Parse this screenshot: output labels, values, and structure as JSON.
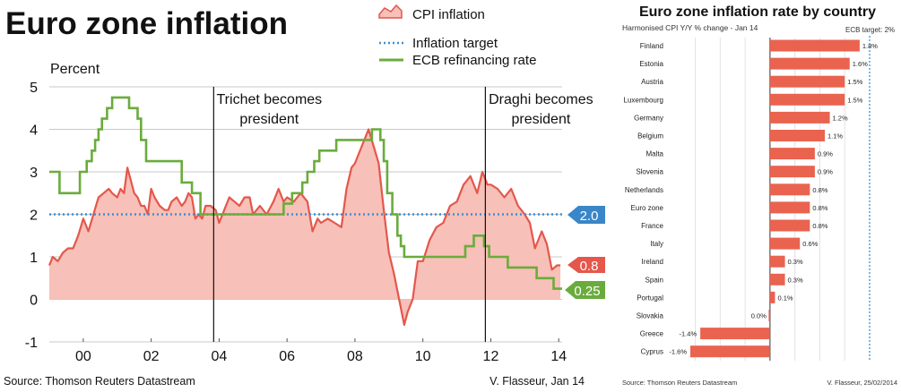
{
  "chart_data": [
    {
      "type": "area",
      "title": "Euro zone inflation",
      "ylabel": "Percent",
      "ylim": [
        -1,
        5
      ],
      "xlim": [
        1999.0,
        2014.1
      ],
      "yticks": [
        "5",
        "4",
        "3",
        "2",
        "1",
        "0",
        "-1"
      ],
      "xticks": [
        {
          "x": 2000,
          "label": "00"
        },
        {
          "x": 2002,
          "label": "02"
        },
        {
          "x": 2004,
          "label": "04"
        },
        {
          "x": 2006,
          "label": "06"
        },
        {
          "x": 2008,
          "label": "08"
        },
        {
          "x": 2010,
          "label": "10"
        },
        {
          "x": 2012,
          "label": "12"
        },
        {
          "x": 2014,
          "label": "14"
        }
      ],
      "grid": "horizontal",
      "legend": [
        "CPI inflation",
        "Inflation target",
        "ECB refinancing rate"
      ],
      "events": [
        {
          "x": 2003.84,
          "label_lines": [
            "Trichet becomes",
            "president"
          ]
        },
        {
          "x": 2011.84,
          "label_lines": [
            "Draghi becomes",
            "president"
          ]
        }
      ],
      "end_labels": {
        "target": "2.0",
        "cpi": "0.8",
        "rate": "0.25"
      },
      "colors": {
        "cpi_line": "#e4574c",
        "cpi_fill": "#f7c0b8",
        "target": "#3d8fd6",
        "rate": "#6aac3c",
        "target_badge": "#3a86c8",
        "cpi_badge": "#e4574c",
        "rate_badge": "#6aac3c"
      },
      "series": [
        {
          "name": "CPI inflation",
          "x": [
            1999.0,
            1999.1,
            1999.25,
            1999.4,
            1999.55,
            1999.7,
            1999.85,
            2000.0,
            2000.15,
            2000.3,
            2000.45,
            2000.6,
            2000.75,
            2000.85,
            2001.0,
            2001.1,
            2001.2,
            2001.3,
            2001.4,
            2001.5,
            2001.6,
            2001.7,
            2001.8,
            2001.9,
            2002.0,
            2002.1,
            2002.25,
            2002.4,
            2002.5,
            2002.6,
            2002.75,
            2002.9,
            2003.0,
            2003.1,
            2003.2,
            2003.3,
            2003.4,
            2003.5,
            2003.6,
            2003.75,
            2003.9,
            2004.0,
            2004.15,
            2004.3,
            2004.45,
            2004.6,
            2004.75,
            2004.9,
            2005.0,
            2005.2,
            2005.4,
            2005.6,
            2005.75,
            2005.9,
            2006.0,
            2006.2,
            2006.4,
            2006.6,
            2006.75,
            2006.9,
            2007.0,
            2007.2,
            2007.4,
            2007.6,
            2007.75,
            2007.9,
            2008.0,
            2008.2,
            2008.4,
            2008.55,
            2008.7,
            2008.85,
            2009.0,
            2009.15,
            2009.3,
            2009.45,
            2009.55,
            2009.7,
            2009.85,
            2010.0,
            2010.2,
            2010.4,
            2010.6,
            2010.8,
            2011.0,
            2011.2,
            2011.4,
            2011.6,
            2011.75,
            2011.9,
            2012.0,
            2012.2,
            2012.4,
            2012.6,
            2012.8,
            2013.0,
            2013.15,
            2013.3,
            2013.5,
            2013.65,
            2013.8,
            2013.95,
            2014.05
          ],
          "values": [
            0.8,
            1.0,
            0.9,
            1.1,
            1.2,
            1.2,
            1.5,
            1.9,
            1.6,
            2.0,
            2.4,
            2.5,
            2.6,
            2.5,
            2.4,
            2.6,
            2.5,
            3.1,
            2.8,
            2.5,
            2.4,
            2.2,
            2.2,
            2.0,
            2.6,
            2.4,
            2.2,
            2.1,
            2.1,
            2.3,
            2.4,
            2.2,
            2.3,
            2.5,
            2.4,
            1.9,
            2.0,
            1.9,
            2.2,
            2.2,
            2.1,
            1.8,
            2.1,
            2.4,
            2.3,
            2.2,
            2.4,
            2.4,
            2.0,
            2.2,
            2.0,
            2.3,
            2.6,
            2.3,
            2.4,
            2.3,
            2.5,
            2.3,
            1.6,
            1.9,
            1.8,
            1.9,
            1.8,
            1.7,
            2.6,
            3.1,
            3.2,
            3.6,
            4.0,
            3.6,
            3.2,
            2.1,
            1.1,
            0.6,
            0.0,
            -0.6,
            -0.3,
            0.0,
            0.9,
            0.9,
            1.4,
            1.7,
            1.8,
            2.2,
            2.3,
            2.7,
            2.9,
            2.5,
            3.0,
            2.7,
            2.7,
            2.6,
            2.4,
            2.6,
            2.2,
            2.0,
            1.8,
            1.2,
            1.6,
            1.3,
            0.7,
            0.8,
            0.8
          ]
        },
        {
          "name": "Inflation target",
          "x": [
            1999.0,
            2014.1
          ],
          "values": [
            2.0,
            2.0
          ]
        },
        {
          "name": "ECB refinancing rate",
          "x": [
            1999.0,
            1999.3,
            1999.9,
            2000.1,
            2000.25,
            2000.35,
            2000.45,
            2000.55,
            2000.7,
            2000.85,
            2001.35,
            2001.6,
            2001.7,
            2001.85,
            2002.9,
            2003.2,
            2003.45,
            2005.9,
            2006.15,
            2006.45,
            2006.6,
            2006.8,
            2006.95,
            2007.45,
            2008.5,
            2008.75,
            2008.85,
            2008.95,
            2009.1,
            2009.25,
            2009.35,
            2009.45,
            2011.25,
            2011.5,
            2011.8,
            2011.95,
            2012.5,
            2013.35,
            2013.85,
            2014.1
          ],
          "values": [
            3.0,
            2.5,
            3.0,
            3.25,
            3.5,
            3.75,
            4.0,
            4.25,
            4.5,
            4.75,
            4.5,
            4.25,
            3.75,
            3.25,
            2.75,
            2.5,
            2.0,
            2.25,
            2.5,
            2.75,
            3.0,
            3.25,
            3.5,
            3.75,
            4.0,
            3.75,
            3.25,
            2.5,
            2.0,
            1.5,
            1.25,
            1.0,
            1.25,
            1.5,
            1.25,
            1.0,
            0.75,
            0.5,
            0.25,
            0.25
          ]
        }
      ],
      "source": "Source: Thomson Reuters Datastream",
      "credit": "V. Flasseur, Jan 14"
    },
    {
      "type": "bar",
      "title": "Euro zone inflation rate by country",
      "subtitle": "Harmonised CPI Y/Y % change - Jan 14",
      "reference": {
        "value": 2.0,
        "label": "ECB target: 2%"
      },
      "xlim": [
        -1.6,
        2.0
      ],
      "categories": [
        "Finland",
        "Estonia",
        "Austria",
        "Luxembourg",
        "Germany",
        "Belgium",
        "Malta",
        "Slovenia",
        "Netherlands",
        "Euro zone",
        "France",
        "Italy",
        "Ireland",
        "Spain",
        "Portugal",
        "Slovakia",
        "Greece",
        "Cyprus"
      ],
      "values": [
        1.8,
        1.6,
        1.5,
        1.5,
        1.2,
        1.1,
        0.9,
        0.9,
        0.8,
        0.8,
        0.8,
        0.6,
        0.3,
        0.3,
        0.1,
        0.0,
        -1.4,
        -1.6
      ],
      "value_labels": [
        "1.8%",
        "1.6%",
        "1.5%",
        "1.5%",
        "1.2%",
        "1.1%",
        "0.9%",
        "0.9%",
        "0.8%",
        "0.8%",
        "0.8%",
        "0.6%",
        "0.3%",
        "0.3%",
        "0.1%",
        "0.0%",
        "-1.4%",
        "-1.6%"
      ],
      "colors": {
        "bar": "#e9634f",
        "target": "#3d8fd6"
      },
      "source": "Source: Thomson Reuters Datastream",
      "credit": "V. Flasseur, 25/02/2014"
    }
  ]
}
